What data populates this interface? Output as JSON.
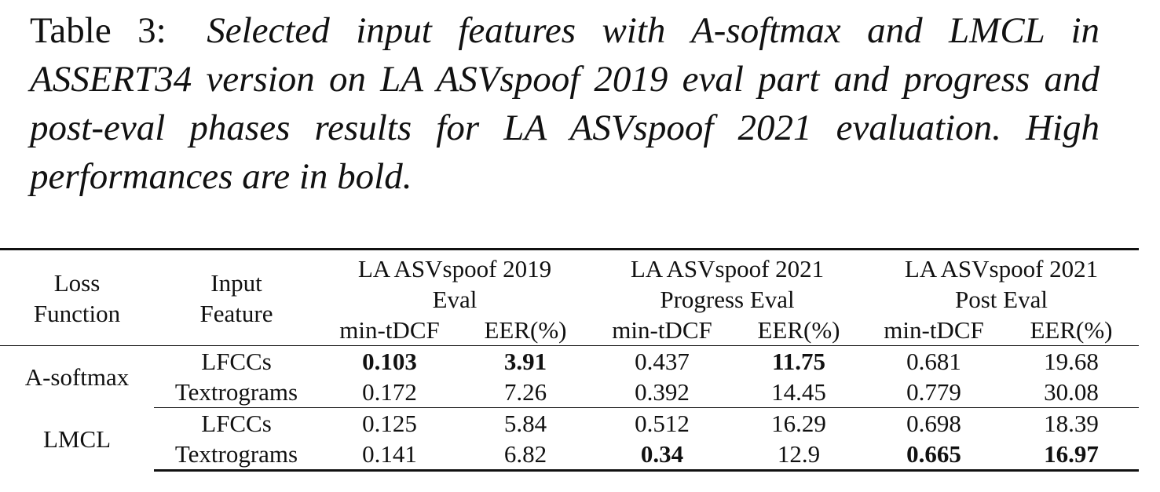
{
  "caption": {
    "label": "Table 3:",
    "text": "Selected input features with A-softmax and LMCL in ASSERT34 version on LA ASVspoof 2019 eval part and progress and post-eval phases results for LA ASVspoof 2021 evaluation. High performances are in bold."
  },
  "table": {
    "headers": {
      "loss": "Loss Function",
      "feature": "Input Feature",
      "groups": [
        "LA ASVspoof 2019 Eval",
        "LA ASVspoof 2021 Progress Eval",
        "LA ASVspoof 2021 Post Eval"
      ],
      "metric_mintdcf": "min-tDCF",
      "metric_eer": "EER(%)"
    },
    "groups": [
      {
        "loss": "A-softmax",
        "rows": [
          {
            "feature": "LFCCs",
            "cells": [
              {
                "v": "0.103",
                "bold": true
              },
              {
                "v": "3.91",
                "bold": true
              },
              {
                "v": "0.437",
                "bold": false
              },
              {
                "v": "11.75",
                "bold": true
              },
              {
                "v": "0.681",
                "bold": false
              },
              {
                "v": "19.68",
                "bold": false
              }
            ]
          },
          {
            "feature": "Textrograms",
            "cells": [
              {
                "v": "0.172",
                "bold": false
              },
              {
                "v": "7.26",
                "bold": false
              },
              {
                "v": "0.392",
                "bold": false
              },
              {
                "v": "14.45",
                "bold": false
              },
              {
                "v": "0.779",
                "bold": false
              },
              {
                "v": "30.08",
                "bold": false
              }
            ]
          }
        ]
      },
      {
        "loss": "LMCL",
        "rows": [
          {
            "feature": "LFCCs",
            "cells": [
              {
                "v": "0.125",
                "bold": false
              },
              {
                "v": "5.84",
                "bold": false
              },
              {
                "v": "0.512",
                "bold": false
              },
              {
                "v": "16.29",
                "bold": false
              },
              {
                "v": "0.698",
                "bold": false
              },
              {
                "v": "18.39",
                "bold": false
              }
            ]
          },
          {
            "feature": "Textrograms",
            "cells": [
              {
                "v": "0.141",
                "bold": false
              },
              {
                "v": "6.82",
                "bold": false
              },
              {
                "v": "0.34",
                "bold": true
              },
              {
                "v": "12.9",
                "bold": false
              },
              {
                "v": "0.665",
                "bold": true
              },
              {
                "v": "16.97",
                "bold": true
              }
            ]
          }
        ]
      }
    ]
  }
}
